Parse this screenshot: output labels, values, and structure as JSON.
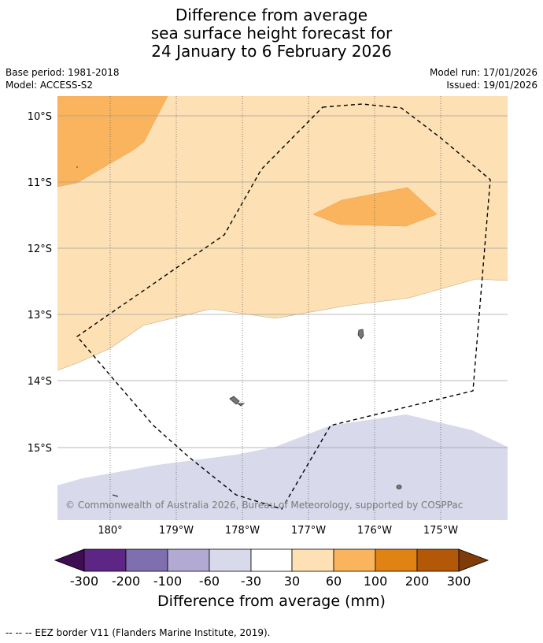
{
  "title": {
    "line1": "Difference from average",
    "line2": "sea surface height forecast for",
    "line3": "24 January to 6 February 2026"
  },
  "meta": {
    "base_period": "Base period: 1981-2018",
    "model": "Model: ACCESS-S2",
    "model_run": "Model run: 17/01/2026",
    "issued": "Issued: 19/01/2026"
  },
  "map": {
    "lat_labels": [
      "10°S",
      "11°S",
      "12°S",
      "13°S",
      "14°S",
      "15°S"
    ],
    "lon_labels": [
      "180°",
      "179°W",
      "178°W",
      "177°W",
      "176°W",
      "175°W"
    ],
    "copyright": "© Commonwealth of Australia 2026, Bureau of Meteorology, supported by COSPPac"
  },
  "colorbar": {
    "ticks": [
      "-300",
      "-200",
      "-100",
      "-60",
      "-30",
      "30",
      "60",
      "100",
      "200",
      "300"
    ],
    "colors": [
      "#3f0d52",
      "#5c2586",
      "#7f6fae",
      "#b2aad3",
      "#d8d9ea",
      "#ffffff",
      "#fde0b4",
      "#fbb45e",
      "#e08214",
      "#b35806",
      "#7f3b08"
    ],
    "title": "Difference from average (mm)"
  },
  "footnote": "--  --  -- EEZ border V11 (Flanders Marine Institute, 2019)."
}
